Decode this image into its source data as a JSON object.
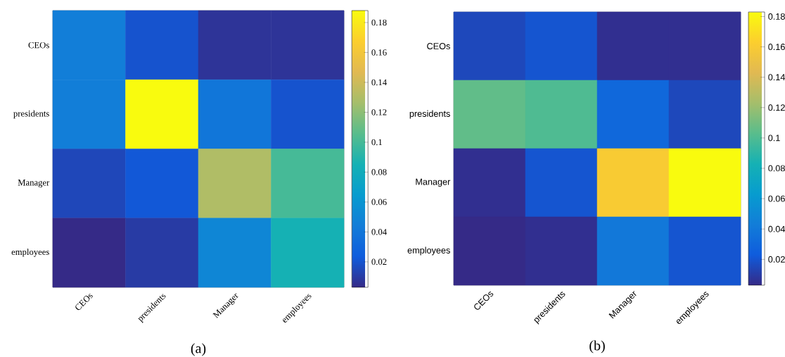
{
  "chart_data": [
    {
      "type": "heatmap",
      "categories": [
        "CEOs",
        "presidents",
        "Manager",
        "employees"
      ],
      "y_categories": [
        "CEOs",
        "presidents",
        "Manager",
        "employees"
      ],
      "cells": [
        [
          0.045,
          0.02,
          0.007,
          0.007
        ],
        [
          0.045,
          0.188,
          0.04,
          0.02
        ],
        [
          0.015,
          0.022,
          0.13,
          0.1
        ],
        [
          0.003,
          0.01,
          0.05,
          0.085
        ]
      ],
      "clim": [
        0.003,
        0.188
      ],
      "cticks": [
        0.02,
        0.04,
        0.06,
        0.08,
        0.1,
        0.12,
        0.14,
        0.16,
        0.18
      ],
      "annotations": [
        "(a)"
      ]
    },
    {
      "type": "heatmap",
      "categories": [
        "CEOs",
        "presidents",
        "Manager",
        "employees"
      ],
      "y_categories": [
        "CEOs",
        "presidents",
        "Manager",
        "employees"
      ],
      "cells": [
        [
          0.015,
          0.02,
          0.005,
          0.005
        ],
        [
          0.105,
          0.1,
          0.03,
          0.015
        ],
        [
          0.005,
          0.02,
          0.16,
          0.183
        ],
        [
          0.003,
          0.005,
          0.04,
          0.02
        ]
      ],
      "clim": [
        0.003,
        0.183
      ],
      "cticks": [
        0.02,
        0.04,
        0.06,
        0.08,
        0.1,
        0.12,
        0.14,
        0.16,
        0.18
      ],
      "annotations": [
        "(b)"
      ]
    }
  ]
}
